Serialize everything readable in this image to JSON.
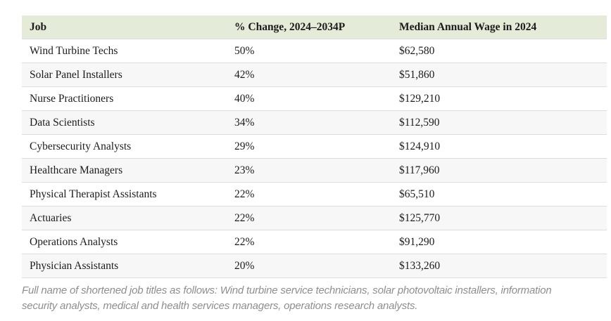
{
  "chart_data": {
    "type": "table",
    "columns": [
      "Job",
      "% Change, 2024–2034P",
      "Median Annual Wage in 2024"
    ],
    "rows": [
      [
        "Wind Turbine Techs",
        "50%",
        "$62,580"
      ],
      [
        "Solar Panel Installers",
        "42%",
        "$51,860"
      ],
      [
        "Nurse Practitioners",
        "40%",
        "$129,210"
      ],
      [
        "Data Scientists",
        "34%",
        "$112,590"
      ],
      [
        "Cybersecurity Analysts",
        "29%",
        "$124,910"
      ],
      [
        "Healthcare Managers",
        "23%",
        "$117,960"
      ],
      [
        "Physical Therapist Assistants",
        "22%",
        "$65,510"
      ],
      [
        "Actuaries",
        "22%",
        "$125,770"
      ],
      [
        "Operations Analysts",
        "22%",
        "$91,290"
      ],
      [
        "Physician Assistants",
        "20%",
        "$133,260"
      ]
    ],
    "layout_hints": {
      "header_background": "#e4ecd9",
      "stripe_background": "#f7f7f7",
      "row_border_color": "#dcdcdc",
      "text_color": "#1b1b1b",
      "zebra_striping": true
    }
  },
  "footnote": "Full name of shortened job titles as follows: Wind turbine service technicians, solar photovoltaic installers, information security analysts, medical and health services managers, operations research analysts.",
  "colors": {
    "header_bg": "#e4ecd9",
    "stripe_bg": "#f7f7f7",
    "border": "#dcdcdc",
    "text": "#1b1b1b",
    "footnote_text": "#8e8e8e"
  }
}
